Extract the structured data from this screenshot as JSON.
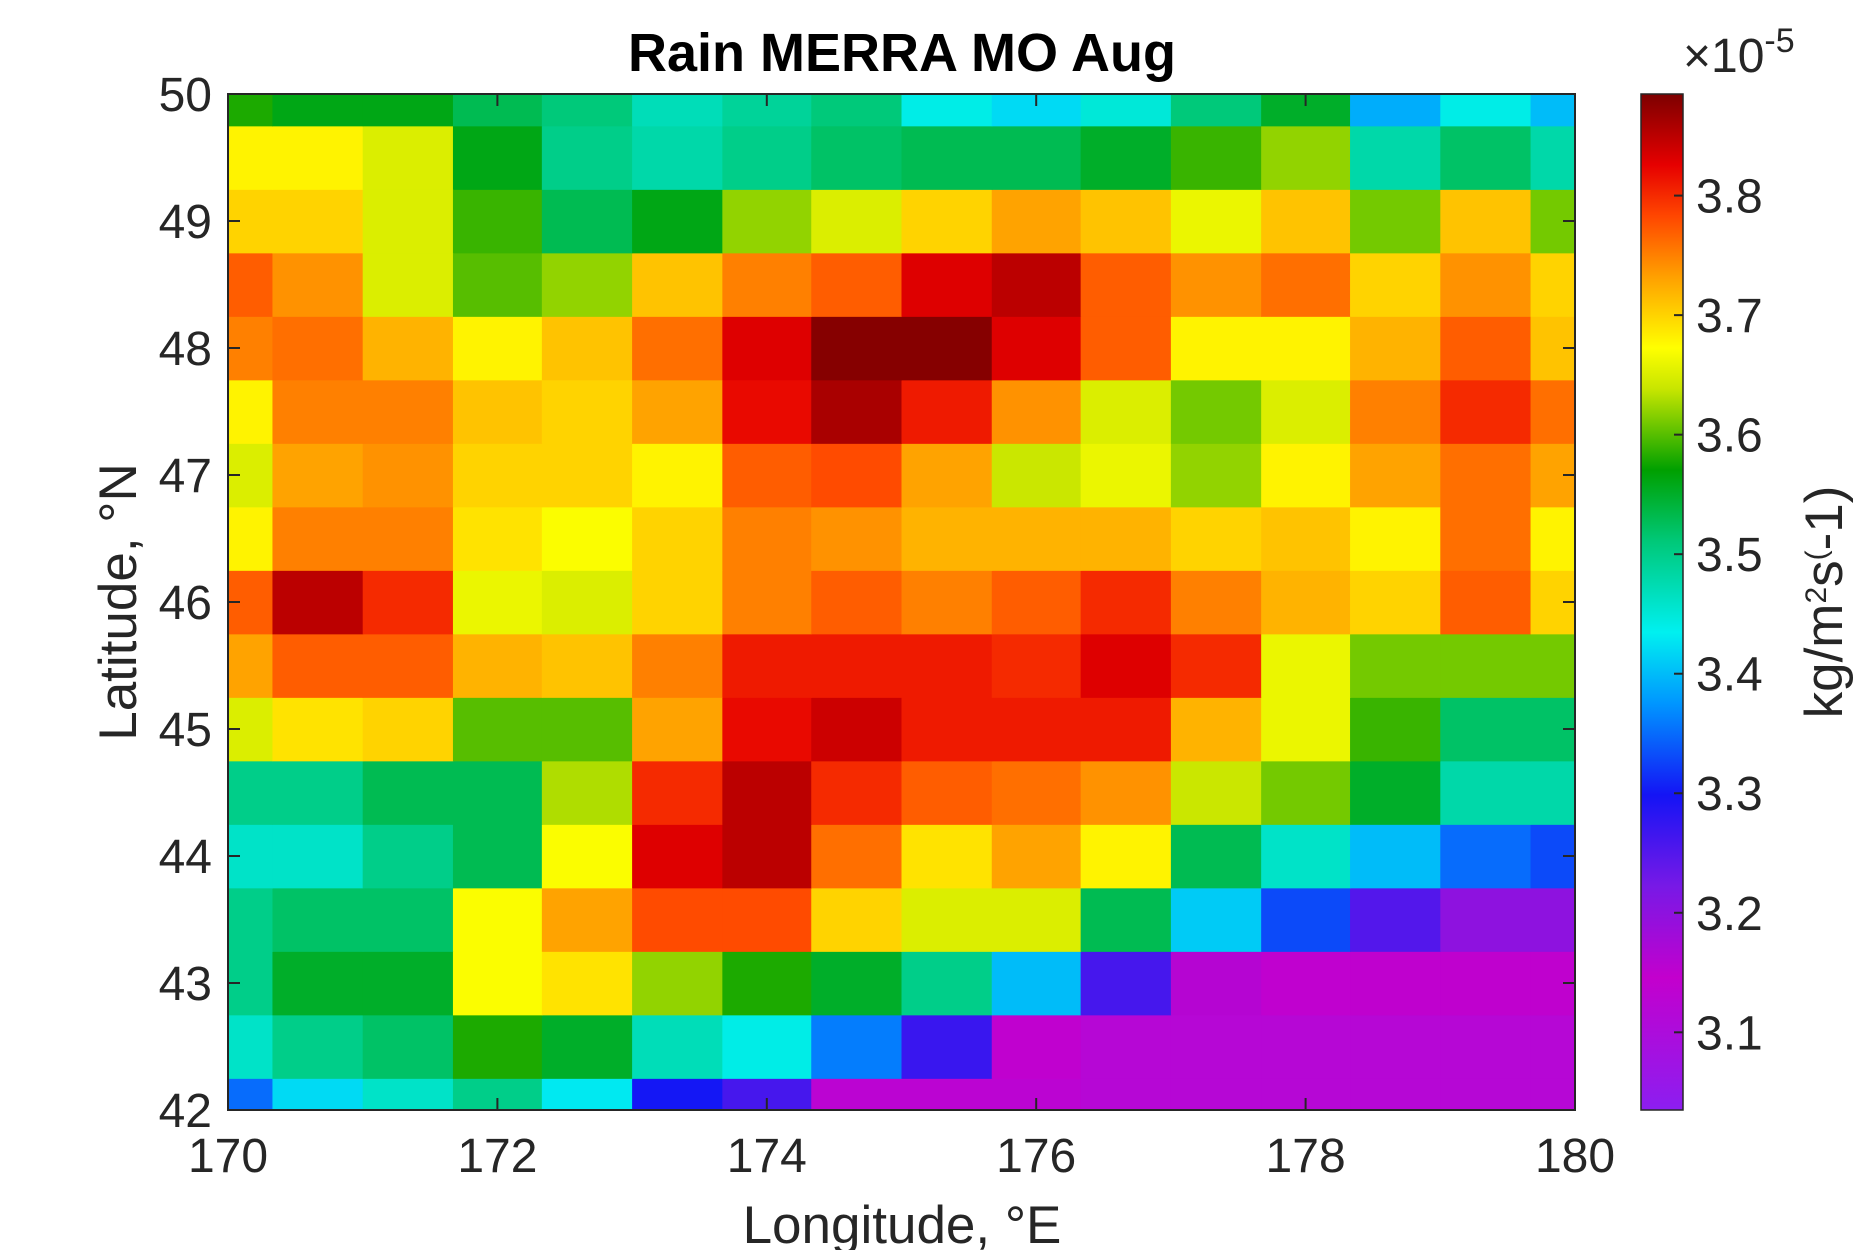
{
  "chart_data": {
    "type": "heatmap",
    "title": "Rain MERRA MO Aug",
    "xlabel": "Longitude, °E",
    "ylabel": "Latitude, °N",
    "colorbar_label": "kg/m^2s^(-1)",
    "colorbar_exponent": "×10^-5",
    "xlim": [
      170,
      180
    ],
    "ylim": [
      42,
      50
    ],
    "x_ticks": [
      170,
      172,
      174,
      176,
      178,
      180
    ],
    "y_ticks": [
      42,
      43,
      44,
      45,
      46,
      47,
      48,
      49,
      50
    ],
    "color_range": [
      3.035,
      3.885
    ],
    "colorbar_ticks": [
      3.1,
      3.2,
      3.3,
      3.4,
      3.5,
      3.6,
      3.7,
      3.8
    ],
    "colormap": "jet-like (purple-blue-cyan-green-yellow-red-dark red)",
    "lon_edges": [
      170,
      170.33,
      171,
      171.67,
      172.33,
      173,
      173.67,
      174.33,
      175,
      175.67,
      176.33,
      177,
      177.67,
      178.33,
      179,
      179.67,
      180
    ],
    "lat_edges": [
      42,
      42.25,
      42.75,
      43.25,
      43.75,
      44.25,
      44.75,
      45.25,
      45.75,
      46.25,
      46.75,
      47.25,
      47.75,
      48.25,
      48.75,
      49.25,
      49.75,
      50
    ],
    "values_rows_south_to_north": [
      [
        3.35,
        3.42,
        3.46,
        3.5,
        3.43,
        3.3,
        3.26,
        3.13,
        3.13,
        3.13,
        3.12,
        3.12,
        3.12,
        3.12,
        3.12,
        3.12
      ],
      [
        3.46,
        3.5,
        3.52,
        3.58,
        3.55,
        3.47,
        3.44,
        3.36,
        3.27,
        3.14,
        3.12,
        3.12,
        3.12,
        3.12,
        3.12,
        3.12
      ],
      [
        3.5,
        3.55,
        3.55,
        3.67,
        3.69,
        3.62,
        3.58,
        3.55,
        3.5,
        3.4,
        3.26,
        3.16,
        3.14,
        3.15,
        3.15,
        3.15
      ],
      [
        3.5,
        3.52,
        3.52,
        3.67,
        3.73,
        3.78,
        3.78,
        3.7,
        3.65,
        3.65,
        3.53,
        3.41,
        3.33,
        3.25,
        3.2,
        3.2
      ],
      [
        3.46,
        3.46,
        3.5,
        3.53,
        3.67,
        3.83,
        3.85,
        3.76,
        3.69,
        3.73,
        3.68,
        3.53,
        3.46,
        3.4,
        3.35,
        3.33
      ],
      [
        3.5,
        3.5,
        3.53,
        3.53,
        3.63,
        3.8,
        3.85,
        3.8,
        3.77,
        3.76,
        3.74,
        3.64,
        3.61,
        3.55,
        3.48,
        3.48
      ],
      [
        3.65,
        3.69,
        3.7,
        3.6,
        3.6,
        3.73,
        3.82,
        3.84,
        3.81,
        3.81,
        3.81,
        3.72,
        3.66,
        3.59,
        3.52,
        3.52
      ],
      [
        3.73,
        3.77,
        3.77,
        3.72,
        3.71,
        3.75,
        3.81,
        3.81,
        3.81,
        3.8,
        3.83,
        3.8,
        3.66,
        3.61,
        3.61,
        3.61
      ],
      [
        3.77,
        3.85,
        3.8,
        3.66,
        3.65,
        3.7,
        3.75,
        3.77,
        3.75,
        3.77,
        3.8,
        3.75,
        3.72,
        3.7,
        3.77,
        3.7
      ],
      [
        3.68,
        3.75,
        3.75,
        3.69,
        3.67,
        3.7,
        3.75,
        3.74,
        3.72,
        3.72,
        3.72,
        3.7,
        3.71,
        3.68,
        3.76,
        3.68
      ],
      [
        3.65,
        3.73,
        3.74,
        3.7,
        3.7,
        3.68,
        3.77,
        3.78,
        3.73,
        3.64,
        3.66,
        3.62,
        3.68,
        3.73,
        3.76,
        3.73
      ],
      [
        3.68,
        3.75,
        3.75,
        3.71,
        3.7,
        3.73,
        3.82,
        3.86,
        3.81,
        3.74,
        3.65,
        3.61,
        3.65,
        3.75,
        3.8,
        3.76
      ],
      [
        3.75,
        3.76,
        3.72,
        3.68,
        3.71,
        3.76,
        3.83,
        3.88,
        3.88,
        3.83,
        3.77,
        3.68,
        3.68,
        3.72,
        3.77,
        3.71
      ],
      [
        3.77,
        3.74,
        3.65,
        3.6,
        3.62,
        3.71,
        3.75,
        3.77,
        3.83,
        3.85,
        3.77,
        3.74,
        3.76,
        3.7,
        3.74,
        3.7
      ],
      [
        3.7,
        3.7,
        3.65,
        3.59,
        3.53,
        3.56,
        3.62,
        3.65,
        3.7,
        3.73,
        3.71,
        3.66,
        3.71,
        3.61,
        3.71,
        3.61
      ],
      [
        3.68,
        3.68,
        3.65,
        3.56,
        3.5,
        3.48,
        3.5,
        3.52,
        3.53,
        3.53,
        3.55,
        3.59,
        3.62,
        3.48,
        3.52,
        3.48
      ],
      [
        3.58,
        3.56,
        3.56,
        3.53,
        3.51,
        3.47,
        3.49,
        3.51,
        3.44,
        3.42,
        3.45,
        3.51,
        3.55,
        3.39,
        3.44,
        3.4
      ]
    ]
  }
}
